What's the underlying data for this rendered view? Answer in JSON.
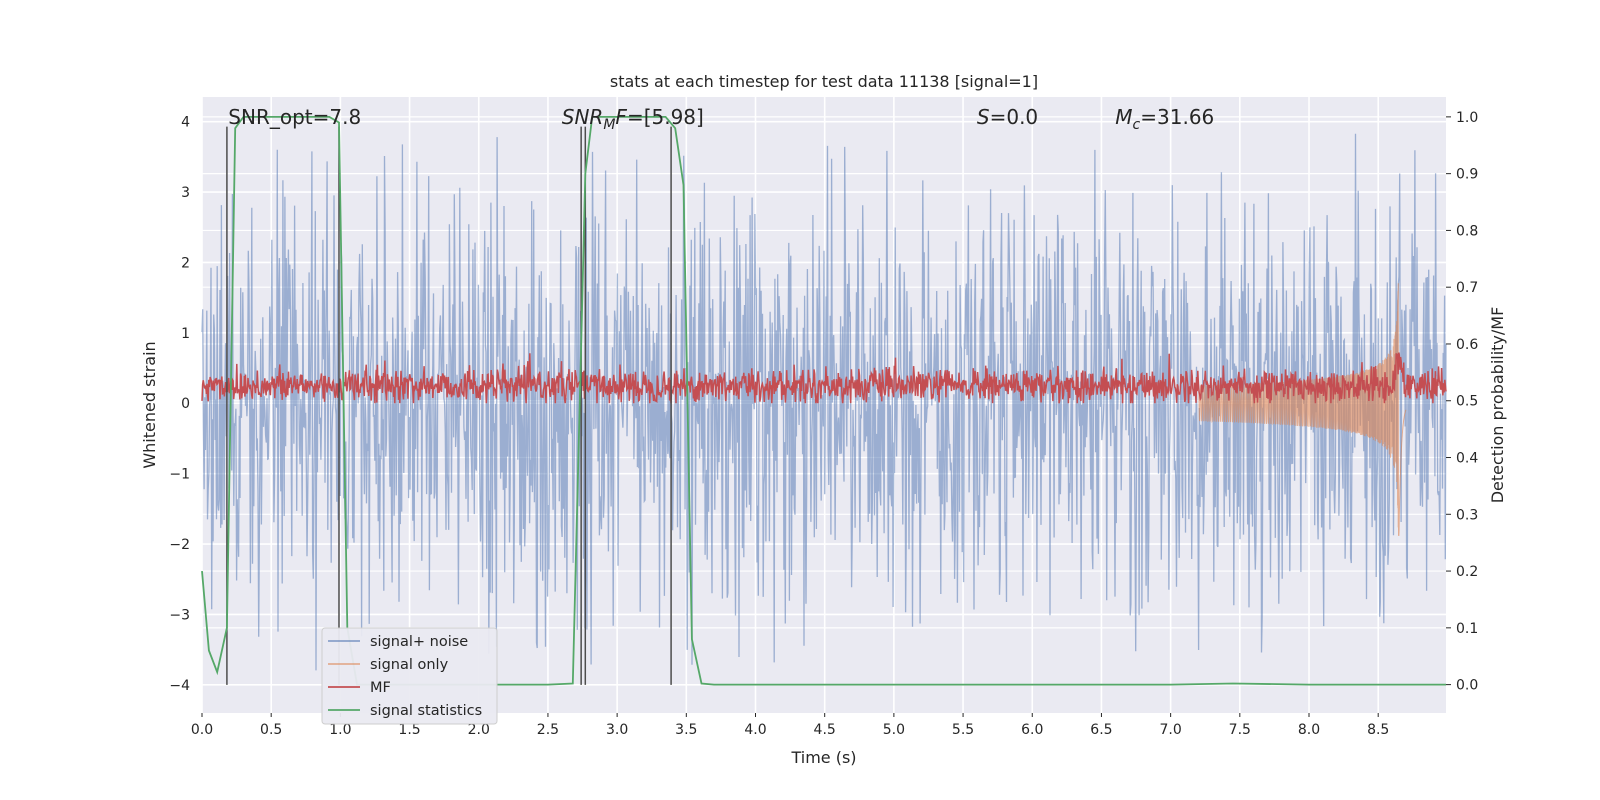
{
  "chart_data": {
    "type": "line",
    "title": "stats at each timestep for test data 11138 [signal=1]",
    "xlabel": "Time (s)",
    "ylabel_left": "Whitened strain",
    "ylabel_right": "Detection probability/MF",
    "xlim": [
      0,
      8.99
    ],
    "ylim_left": [
      -4.4,
      4.35
    ],
    "ylim_right": [
      -0.05,
      1.035
    ],
    "xticks": [
      0.0,
      0.5,
      1.0,
      1.5,
      2.0,
      2.5,
      3.0,
      3.5,
      4.0,
      4.5,
      5.0,
      5.5,
      6.0,
      6.5,
      7.0,
      7.5,
      8.0,
      8.5
    ],
    "xtick_labels": [
      "0.0",
      "0.5",
      "1.0",
      "1.5",
      "2.0",
      "2.5",
      "3.0",
      "3.5",
      "4.0",
      "4.5",
      "5.0",
      "5.5",
      "6.0",
      "6.5",
      "7.0",
      "7.5",
      "8.0",
      "8.5"
    ],
    "yticks_left": [
      4,
      3,
      2,
      1,
      0,
      -1,
      -2,
      -3,
      -4
    ],
    "ytick_labels_left": [
      "4",
      "3",
      "2",
      "1",
      "0",
      "−1",
      "−2",
      "−3",
      "−4"
    ],
    "yticks_right": [
      1.0,
      0.9,
      0.8,
      0.7,
      0.6,
      0.5,
      0.4,
      0.3,
      0.2,
      0.1,
      0.0
    ],
    "ytick_labels_right": [
      "1.0",
      "0.9",
      "0.8",
      "0.7",
      "0.6",
      "0.5",
      "0.4",
      "0.3",
      "0.2",
      "0.1",
      "0.0"
    ],
    "grid": true,
    "legend_position": "lower-left",
    "annotations": [
      {
        "text": "SNR_opt=7.8",
        "x": 0.19
      },
      {
        "text": "SNR_MF=[5.98]",
        "x": 2.6,
        "math": true
      },
      {
        "text": "S=0.0",
        "x": 5.6,
        "math": true
      },
      {
        "text": "M_c=31.66",
        "x": 6.6,
        "math": true
      }
    ],
    "vertical_lines": {
      "x": [
        0.18,
        0.99,
        2.74,
        2.77,
        3.39
      ],
      "ymin": -4.0,
      "ymax": 3.93,
      "color": "#4d4d4d"
    },
    "series": [
      {
        "name": "signal+ noise",
        "color": "#4c72b0",
        "axis": "left",
        "kind": "noise",
        "core_std": 0.8,
        "spike_max": 4.0
      },
      {
        "name": "signal only",
        "color": "#dd8452",
        "axis": "left",
        "kind": "chirp",
        "merger_time": 8.65,
        "peak_amplitude": 2.0
      },
      {
        "name": "MF",
        "color": "#c44e52",
        "axis": "left",
        "kind": "mf",
        "baseline": 0.25,
        "range": [
          0.0,
          0.72
        ]
      },
      {
        "name": "signal statistics",
        "color": "#55a868",
        "axis": "right",
        "x": [
          0.0,
          0.05,
          0.11,
          0.18,
          0.24,
          0.3,
          0.4,
          0.7,
          0.92,
          0.99,
          1.05,
          1.12,
          1.5,
          2.0,
          2.5,
          2.68,
          2.74,
          2.77,
          2.82,
          2.88,
          3.0,
          3.2,
          3.35,
          3.42,
          3.48,
          3.54,
          3.61,
          3.7,
          4.0,
          5.0,
          6.0,
          7.0,
          7.45,
          8.0,
          8.5,
          8.99
        ],
        "y": [
          0.2,
          0.06,
          0.022,
          0.1,
          0.98,
          1.0,
          1.0,
          1.0,
          1.0,
          0.99,
          0.1,
          0.0,
          0.0,
          0.0,
          0.0,
          0.002,
          0.6,
          0.9,
          1.0,
          1.0,
          1.0,
          1.0,
          1.0,
          0.98,
          0.88,
          0.08,
          0.002,
          0.0,
          0.0,
          0.0,
          0.0,
          0.0,
          0.002,
          0.0,
          0.0,
          0.0
        ]
      }
    ]
  }
}
